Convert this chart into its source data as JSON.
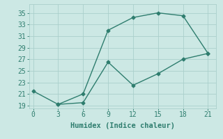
{
  "line1_x": [
    0,
    3,
    6,
    9,
    12,
    15,
    18,
    21
  ],
  "line1_y": [
    21.5,
    19.2,
    21.0,
    32.0,
    34.2,
    35.0,
    34.5,
    28.0
  ],
  "line2_x": [
    3,
    6,
    9,
    12,
    15,
    18,
    21
  ],
  "line2_y": [
    19.2,
    19.5,
    26.5,
    22.5,
    24.5,
    27.0,
    28.0
  ],
  "line_color": "#2e7d6e",
  "bg_color": "#cce8e4",
  "grid_color": "#aacfcb",
  "xlabel": "Humidex (Indice chaleur)",
  "xlim": [
    -0.5,
    22
  ],
  "ylim": [
    18.5,
    36.5
  ],
  "xticks": [
    0,
    3,
    6,
    9,
    12,
    15,
    18,
    21
  ],
  "yticks": [
    19,
    21,
    23,
    25,
    27,
    29,
    31,
    33,
    35
  ],
  "marker": "D",
  "marker_size": 2.5,
  "linewidth": 1.0,
  "font_size": 7.5
}
